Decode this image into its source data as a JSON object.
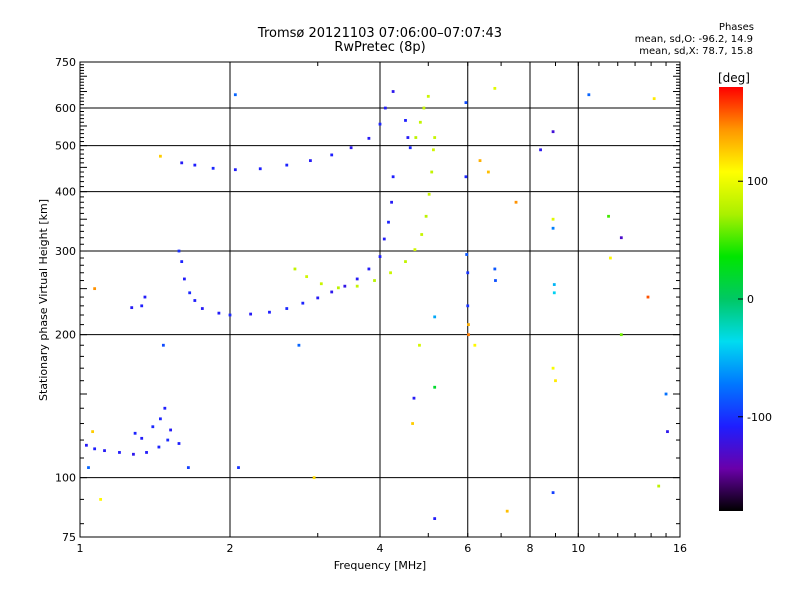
{
  "header": {
    "title": "Tromsø 20121103 07:06:00–07:07:43",
    "subtitle": "RwPretec (8p)",
    "stats_title": "Phases",
    "stats_o": "mean, sd,O: -96.2, 14.9",
    "stats_x": "mean, sd,X:  78.7, 15.8"
  },
  "chart_data": {
    "type": "scatter",
    "title": "Tromsø 20121103 07:06:00–07:07:43",
    "subtitle": "RwPretec (8p)",
    "xlabel": "Frequency [MHz]",
    "ylabel": "Stationary phase Virtual Height [km]",
    "xscale": "log",
    "yscale": "log",
    "xlim": [
      1,
      16
    ],
    "ylim": [
      75,
      750
    ],
    "xticks": [
      1,
      2,
      4,
      6,
      8,
      10,
      16
    ],
    "xtick_labels": [
      "1",
      "2",
      "4",
      "6",
      "8",
      "10",
      "16"
    ],
    "x_gridlines": [
      2,
      4,
      6,
      8,
      10
    ],
    "yticks": [
      75,
      100,
      200,
      300,
      400,
      500,
      600,
      750
    ],
    "ytick_labels": [
      "75",
      "100",
      "200",
      "300",
      "400",
      "500",
      "600",
      "750"
    ],
    "y_gridlines": [
      100,
      200,
      300,
      400,
      500,
      600
    ],
    "grid": true,
    "colorbar": {
      "label": "[deg]",
      "range": [
        -180,
        180
      ],
      "tick_values": [
        100,
        0,
        -100
      ],
      "tick_labels": [
        "100",
        "0",
        "-100"
      ]
    },
    "series": [
      {
        "points": [
          [
            1.03,
            117,
            -112
          ],
          [
            1.07,
            115,
            -108
          ],
          [
            1.12,
            114,
            -112
          ],
          [
            1.2,
            113,
            -110
          ],
          [
            1.28,
            112,
            -115
          ],
          [
            1.36,
            113,
            -110
          ],
          [
            1.44,
            116,
            -106
          ],
          [
            1.5,
            120,
            -103
          ],
          [
            1.45,
            133,
            -106
          ],
          [
            1.48,
            140,
            -108
          ],
          [
            1.4,
            128,
            -104
          ],
          [
            1.52,
            126,
            -112
          ],
          [
            1.58,
            118,
            -108
          ],
          [
            1.33,
            121,
            -110
          ],
          [
            1.29,
            124,
            -106
          ]
        ]
      },
      {
        "points": [
          [
            1.27,
            228,
            -112
          ],
          [
            1.33,
            230,
            -108
          ],
          [
            1.35,
            240,
            -110
          ],
          [
            1.58,
            300,
            -102
          ],
          [
            1.6,
            285,
            -106
          ],
          [
            1.62,
            262,
            -110
          ],
          [
            1.66,
            245,
            -104
          ],
          [
            1.7,
            236,
            -109
          ],
          [
            1.76,
            227,
            -112
          ],
          [
            1.9,
            222,
            -110
          ],
          [
            2.0,
            220,
            -104
          ],
          [
            2.2,
            221,
            -112
          ],
          [
            2.4,
            223,
            -108
          ],
          [
            2.6,
            227,
            -104
          ],
          [
            2.8,
            233,
            -106
          ],
          [
            3.0,
            239,
            -112
          ],
          [
            3.2,
            246,
            -115
          ],
          [
            3.4,
            253,
            -118
          ],
          [
            3.6,
            262,
            -112
          ],
          [
            3.8,
            275,
            -110
          ],
          [
            4.0,
            292,
            -108
          ],
          [
            4.08,
            318,
            -110
          ],
          [
            4.16,
            345,
            -106
          ],
          [
            4.22,
            380,
            -112
          ],
          [
            4.25,
            430,
            -108
          ]
        ]
      },
      {
        "points": [
          [
            2.7,
            275,
            82
          ],
          [
            2.85,
            265,
            88
          ],
          [
            3.05,
            256,
            85
          ],
          [
            3.3,
            251,
            80
          ],
          [
            3.6,
            253,
            84
          ],
          [
            3.9,
            260,
            78
          ],
          [
            4.2,
            270,
            86
          ],
          [
            4.5,
            285,
            82
          ],
          [
            4.7,
            302,
            88
          ],
          [
            4.85,
            325,
            84
          ],
          [
            4.95,
            355,
            80
          ],
          [
            5.02,
            395,
            86
          ],
          [
            5.08,
            440,
            82
          ],
          [
            5.12,
            490,
            88
          ],
          [
            5.15,
            520,
            84
          ]
        ]
      },
      {
        "points": [
          [
            1.6,
            460,
            -112
          ],
          [
            1.7,
            455,
            -108
          ],
          [
            1.85,
            448,
            -104
          ],
          [
            2.05,
            445,
            -110
          ],
          [
            2.3,
            447,
            -108
          ],
          [
            2.6,
            455,
            -106
          ],
          [
            2.9,
            465,
            -112
          ],
          [
            3.2,
            478,
            -108
          ],
          [
            3.5,
            495,
            -115
          ],
          [
            3.8,
            518,
            -112
          ],
          [
            4.0,
            555,
            -106
          ],
          [
            4.1,
            600,
            -110
          ],
          [
            4.5,
            565,
            -108
          ],
          [
            4.55,
            520,
            -112
          ],
          [
            4.6,
            495,
            -104
          ],
          [
            4.72,
            520,
            80
          ],
          [
            4.82,
            560,
            82
          ],
          [
            4.9,
            600,
            84
          ],
          [
            5.0,
            635,
            86
          ]
        ]
      },
      {
        "points": [
          [
            1.07,
            250,
            145
          ],
          [
            1.06,
            125,
            125
          ],
          [
            1.04,
            105,
            -80
          ],
          [
            1.1,
            90,
            110
          ],
          [
            1.45,
            475,
            125
          ],
          [
            1.47,
            190,
            -90
          ],
          [
            1.65,
            105,
            -95
          ],
          [
            2.05,
            640,
            -80
          ],
          [
            2.08,
            105,
            -100
          ],
          [
            2.75,
            190,
            -80
          ],
          [
            2.95,
            100,
            120
          ],
          [
            4.25,
            650,
            -115
          ],
          [
            4.65,
            130,
            125
          ],
          [
            4.68,
            147,
            -112
          ],
          [
            4.8,
            190,
            90
          ],
          [
            5.15,
            218,
            -55
          ],
          [
            5.15,
            155,
            20
          ],
          [
            5.15,
            82,
            -110
          ],
          [
            5.95,
            616,
            -90
          ],
          [
            5.95,
            430,
            -105
          ],
          [
            5.97,
            295,
            -85
          ],
          [
            6.0,
            270,
            -100
          ],
          [
            6.0,
            230,
            -100
          ],
          [
            6.02,
            210,
            135
          ],
          [
            6.02,
            200,
            150
          ],
          [
            6.2,
            190,
            110
          ],
          [
            6.35,
            465,
            135
          ],
          [
            6.6,
            440,
            130
          ],
          [
            6.8,
            660,
            95
          ],
          [
            6.8,
            275,
            -85
          ],
          [
            6.82,
            260,
            -88
          ],
          [
            7.2,
            85,
            130
          ],
          [
            7.5,
            380,
            145
          ],
          [
            8.4,
            490,
            -115
          ],
          [
            8.9,
            535,
            -125
          ],
          [
            8.9,
            350,
            95
          ],
          [
            8.9,
            335,
            -70
          ],
          [
            8.95,
            255,
            -50
          ],
          [
            8.95,
            245,
            -40
          ],
          [
            8.9,
            170,
            105
          ],
          [
            9.0,
            160,
            115
          ],
          [
            8.9,
            93,
            -95
          ],
          [
            10.5,
            640,
            -80
          ],
          [
            11.5,
            355,
            50
          ],
          [
            11.6,
            290,
            110
          ],
          [
            12.2,
            320,
            -130
          ],
          [
            12.2,
            200,
            60
          ],
          [
            13.8,
            240,
            160
          ],
          [
            14.2,
            628,
            115
          ],
          [
            14.5,
            96,
            80
          ],
          [
            15.0,
            150,
            -75
          ],
          [
            15.1,
            125,
            -115
          ]
        ]
      }
    ]
  },
  "colors": {
    "grid": "#000000",
    "background": "#ffffff",
    "colorscale": [
      "#000000",
      "#6a00aa",
      "#1e1eff",
      "#0078ff",
      "#00dcf0",
      "#00c864",
      "#00e600",
      "#aaf000",
      "#ffff00",
      "#ff9600",
      "#ff0000"
    ]
  }
}
